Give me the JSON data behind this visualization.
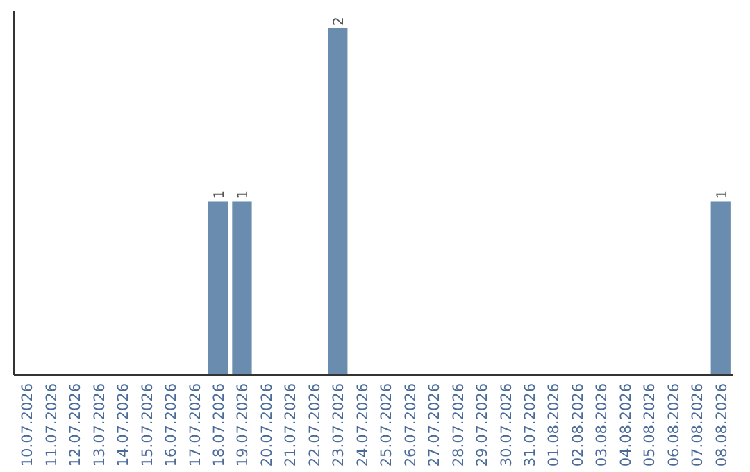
{
  "chart_data": {
    "type": "bar",
    "categories": [
      "10.07.2026",
      "11.07.2026",
      "12.07.2026",
      "13.07.2026",
      "14.07.2026",
      "15.07.2026",
      "16.07.2026",
      "17.07.2026",
      "18.07.2026",
      "19.07.2026",
      "20.07.2026",
      "21.07.2026",
      "22.07.2026",
      "23.07.2026",
      "24.07.2026",
      "25.07.2026",
      "26.07.2026",
      "27.07.2026",
      "28.07.2026",
      "29.07.2026",
      "30.07.2026",
      "31.07.2026",
      "01.08.2026",
      "02.08.2026",
      "03.08.2026",
      "04.08.2026",
      "05.08.2026",
      "06.08.2026",
      "07.08.2026",
      "08.08.2026"
    ],
    "values": [
      0,
      0,
      0,
      0,
      0,
      0,
      0,
      0,
      1,
      1,
      0,
      0,
      0,
      2,
      0,
      0,
      0,
      0,
      0,
      0,
      0,
      0,
      0,
      0,
      0,
      0,
      0,
      0,
      0,
      1
    ],
    "value_labels": [
      null,
      null,
      null,
      null,
      null,
      null,
      null,
      null,
      "1",
      "1",
      null,
      null,
      null,
      "2",
      null,
      null,
      null,
      null,
      null,
      null,
      null,
      null,
      null,
      null,
      null,
      null,
      null,
      null,
      null,
      "1"
    ],
    "color": "#6a8caf"
  }
}
